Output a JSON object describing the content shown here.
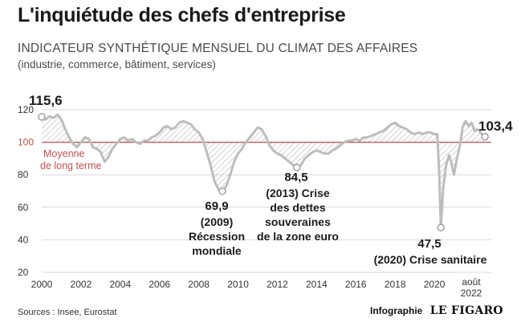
{
  "header": {
    "title": "L'inquiétude des chefs d'entreprise",
    "subtitle": "INDICATEUR SYNTHÉTIQUE MENSUEL DU CLIMAT DES AFFAIRES",
    "subtitle2": "(industrie, commerce, bâtiment, services)"
  },
  "footer": {
    "source": "Sources : Insee, Eurostat",
    "credit_label": "Infographie",
    "credit_brand": "LE FIGARO"
  },
  "colors": {
    "line": "#bdbdbd",
    "reference": "#c0504d",
    "hatch": "#b0b0b0",
    "grid": "#d9d9d9",
    "text": "#1a1a1a"
  },
  "chart_data": {
    "type": "line",
    "xlim": [
      2000,
      2022.9
    ],
    "ylim": [
      20,
      120
    ],
    "yticks": [
      20,
      40,
      60,
      80,
      100,
      120
    ],
    "xticks": [
      2000,
      2002,
      2004,
      2006,
      2008,
      2010,
      2012,
      2014,
      2016,
      2018,
      2020
    ],
    "xtick_last": [
      "août",
      "2022"
    ],
    "grid": true,
    "reference": {
      "y": 100,
      "label_lines": [
        "Moyenne",
        "de long terme"
      ]
    },
    "series": [
      {
        "x": [
          2000.0,
          2000.2,
          2000.4,
          2000.6,
          2000.8,
          2001.0,
          2001.2,
          2001.4,
          2001.6,
          2001.8,
          2002.0,
          2002.2,
          2002.4,
          2002.6,
          2002.8,
          2003.0,
          2003.2,
          2003.4,
          2003.6,
          2003.8,
          2004.0,
          2004.2,
          2004.4,
          2004.6,
          2004.8,
          2005.0,
          2005.2,
          2005.4,
          2005.6,
          2005.8,
          2006.0,
          2006.2,
          2006.4,
          2006.6,
          2006.8,
          2007.0,
          2007.2,
          2007.4,
          2007.6,
          2007.8,
          2008.0,
          2008.2,
          2008.4,
          2008.6,
          2008.8,
          2009.0,
          2009.2,
          2009.4,
          2009.6,
          2009.8,
          2010.0,
          2010.2,
          2010.4,
          2010.6,
          2010.8,
          2011.0,
          2011.2,
          2011.4,
          2011.6,
          2011.8,
          2012.0,
          2012.2,
          2012.4,
          2012.6,
          2012.8,
          2013.0,
          2013.2,
          2013.4,
          2013.6,
          2013.8,
          2014.0,
          2014.2,
          2014.4,
          2014.6,
          2014.8,
          2015.0,
          2015.2,
          2015.4,
          2015.6,
          2015.8,
          2016.0,
          2016.2,
          2016.4,
          2016.6,
          2016.8,
          2017.0,
          2017.2,
          2017.4,
          2017.6,
          2017.8,
          2018.0,
          2018.2,
          2018.4,
          2018.6,
          2018.8,
          2019.0,
          2019.2,
          2019.4,
          2019.6,
          2019.8,
          2020.0,
          2020.15,
          2020.25,
          2020.33,
          2020.45,
          2020.6,
          2020.75,
          2020.85,
          2021.0,
          2021.15,
          2021.3,
          2021.45,
          2021.6,
          2021.75,
          2021.9,
          2022.05,
          2022.2,
          2022.35,
          2022.5,
          2022.58
        ],
        "y": [
          115.6,
          114.0,
          116.0,
          115.0,
          117.0,
          114.0,
          108.0,
          103.0,
          99.0,
          97.0,
          100.0,
          103.0,
          102.0,
          97.0,
          96.0,
          94.0,
          88.0,
          91.0,
          96.0,
          99.0,
          102.0,
          103.0,
          101.0,
          102.0,
          100.0,
          99.0,
          101.0,
          101.0,
          103.0,
          104.0,
          106.0,
          109.0,
          110.0,
          108.0,
          109.0,
          112.0,
          113.0,
          112.0,
          111.0,
          108.0,
          106.0,
          102.0,
          94.0,
          86.0,
          76.0,
          71.0,
          69.9,
          73.0,
          80.0,
          88.0,
          93.0,
          96.0,
          100.0,
          103.0,
          106.0,
          109.0,
          108.0,
          104.0,
          98.0,
          95.0,
          93.0,
          92.0,
          90.0,
          88.0,
          86.0,
          84.5,
          86.0,
          90.0,
          92.0,
          94.0,
          95.0,
          94.0,
          93.0,
          93.0,
          95.0,
          96.0,
          98.0,
          100.0,
          101.0,
          101.0,
          102.0,
          101.0,
          103.0,
          103.0,
          104.0,
          105.0,
          106.0,
          107.0,
          109.0,
          111.0,
          112.0,
          110.0,
          109.0,
          108.0,
          106.0,
          105.0,
          106.0,
          105.0,
          106.0,
          106.0,
          105.0,
          105.0,
          80.0,
          47.5,
          72.0,
          86.0,
          92.0,
          88.0,
          80.0,
          90.0,
          98.0,
          110.0,
          113.0,
          110.0,
          112.0,
          107.0,
          108.0,
          106.0,
          104.0,
          103.4
        ]
      }
    ],
    "annotations": [
      {
        "label": "115,6",
        "x": 2000.0,
        "y": 115.6
      },
      {
        "label": "103,4",
        "x": 2022.58,
        "y": 103.4
      },
      {
        "label": "69,9",
        "x": 2009.2,
        "y": 69.9,
        "text": [
          "(2009)",
          "Récession",
          "mondiale"
        ]
      },
      {
        "label": "84,5",
        "x": 2013.0,
        "y": 84.5,
        "text": [
          "(2013) Crise",
          "des dettes",
          "souveraines",
          "de la zone euro"
        ]
      },
      {
        "label": "47,5",
        "x": 2020.33,
        "y": 47.5,
        "text": [
          "(2020) Crise sanitaire"
        ]
      }
    ]
  }
}
